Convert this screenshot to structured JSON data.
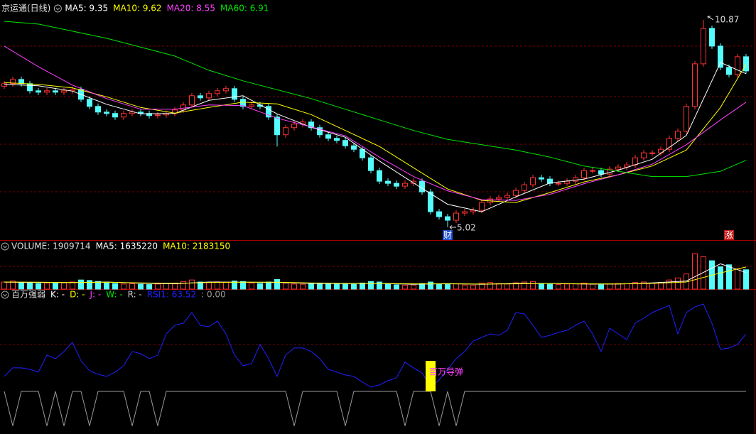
{
  "chart_data": [
    {
      "type": "candlestick",
      "title": "京运通(日线)",
      "up_color": "#ff3232",
      "down_color": "#54fcfc",
      "ylim": [
        4.66,
        11.43
      ],
      "open": [
        9.0,
        9.07,
        9.19,
        9.07,
        8.87,
        8.83,
        8.87,
        8.83,
        8.87,
        8.91,
        8.63,
        8.43,
        8.27,
        8.23,
        8.13,
        8.23,
        8.27,
        8.23,
        8.17,
        8.19,
        8.23,
        8.33,
        8.47,
        8.73,
        8.67,
        8.79,
        8.87,
        8.93,
        8.63,
        8.43,
        8.47,
        8.43,
        8.13,
        7.63,
        7.83,
        7.93,
        7.99,
        7.83,
        7.63,
        7.53,
        7.47,
        7.32,
        7.22,
        6.98,
        6.62,
        6.32,
        6.26,
        6.18,
        6.26,
        6.32,
        6.02,
        5.46,
        5.32,
        5.22,
        5.42,
        5.46,
        5.5,
        5.72,
        5.82,
        5.86,
        5.92,
        6.06,
        6.22,
        6.42,
        6.38,
        6.26,
        6.26,
        6.32,
        6.42,
        6.62,
        6.62,
        6.52,
        6.66,
        6.72,
        6.78,
        6.98,
        7.12,
        7.12,
        7.22,
        7.53,
        7.73,
        8.43,
        9.63,
        10.63,
        10.13,
        9.53,
        9.33,
        9.83
      ],
      "high": [
        9.15,
        9.27,
        9.27,
        9.15,
        8.95,
        8.95,
        8.95,
        8.95,
        8.99,
        8.99,
        8.71,
        8.51,
        8.35,
        8.31,
        8.31,
        8.35,
        8.35,
        8.31,
        8.27,
        8.31,
        8.41,
        8.55,
        8.81,
        8.81,
        8.87,
        8.95,
        9.01,
        9.01,
        8.71,
        8.55,
        8.55,
        8.51,
        8.21,
        7.91,
        8.01,
        8.07,
        8.07,
        7.91,
        7.71,
        7.61,
        7.55,
        7.4,
        7.3,
        7.06,
        6.7,
        6.4,
        6.34,
        6.34,
        6.4,
        6.4,
        6.1,
        5.54,
        5.4,
        5.5,
        5.54,
        5.58,
        5.8,
        5.9,
        5.94,
        6.0,
        6.14,
        6.3,
        6.5,
        6.5,
        6.46,
        6.34,
        6.4,
        6.5,
        6.7,
        6.7,
        6.7,
        6.74,
        6.8,
        6.86,
        7.06,
        7.2,
        7.2,
        7.3,
        7.61,
        7.81,
        8.51,
        9.71,
        10.87,
        10.71,
        10.21,
        9.61,
        9.91,
        9.91
      ],
      "low": [
        8.92,
        8.99,
        8.99,
        8.79,
        8.75,
        8.75,
        8.75,
        8.75,
        8.79,
        8.55,
        8.35,
        8.19,
        8.15,
        8.05,
        8.05,
        8.15,
        8.15,
        8.09,
        8.09,
        8.11,
        8.15,
        8.25,
        8.39,
        8.59,
        8.59,
        8.71,
        8.79,
        8.55,
        8.35,
        8.35,
        8.35,
        8.05,
        7.3,
        7.55,
        7.75,
        7.85,
        7.75,
        7.55,
        7.45,
        7.39,
        7.24,
        7.14,
        6.9,
        6.54,
        6.24,
        6.18,
        6.1,
        6.1,
        6.18,
        5.94,
        5.38,
        5.24,
        5.02,
        5.14,
        5.34,
        5.38,
        5.42,
        5.64,
        5.74,
        5.78,
        5.84,
        5.98,
        6.14,
        6.3,
        6.18,
        6.18,
        6.18,
        6.24,
        6.34,
        6.54,
        6.44,
        6.44,
        6.58,
        6.64,
        6.7,
        6.9,
        7.04,
        7.04,
        7.14,
        7.45,
        7.65,
        8.35,
        9.55,
        10.05,
        9.45,
        9.25,
        9.25,
        9.35
      ],
      "close": [
        9.07,
        9.19,
        9.07,
        8.87,
        8.83,
        8.87,
        8.83,
        8.87,
        8.91,
        8.63,
        8.43,
        8.27,
        8.23,
        8.13,
        8.23,
        8.27,
        8.23,
        8.17,
        8.19,
        8.23,
        8.33,
        8.47,
        8.73,
        8.67,
        8.79,
        8.87,
        8.93,
        8.63,
        8.43,
        8.47,
        8.43,
        8.13,
        7.63,
        7.83,
        7.93,
        7.99,
        7.83,
        7.63,
        7.53,
        7.47,
        7.32,
        7.22,
        6.98,
        6.62,
        6.32,
        6.26,
        6.18,
        6.26,
        6.32,
        6.02,
        5.46,
        5.32,
        5.22,
        5.42,
        5.46,
        5.5,
        5.72,
        5.82,
        5.86,
        5.92,
        6.06,
        6.22,
        6.42,
        6.38,
        6.26,
        6.26,
        6.32,
        6.42,
        6.62,
        6.62,
        6.52,
        6.66,
        6.72,
        6.78,
        6.98,
        7.12,
        7.12,
        7.22,
        7.53,
        7.73,
        8.43,
        9.63,
        10.63,
        10.13,
        9.53,
        9.33,
        9.83,
        9.43
      ],
      "ma_x": [
        0,
        4,
        8,
        12,
        16,
        20,
        24,
        28,
        32,
        36,
        40,
        44,
        48,
        52,
        56,
        60,
        64,
        68,
        72,
        76,
        80,
        84,
        87
      ],
      "series": [
        {
          "name": "MA5: 9.35",
          "color": "#ffffff",
          "values": [
            9.05,
            9.01,
            8.86,
            8.49,
            8.22,
            8.23,
            8.6,
            8.73,
            8.22,
            7.84,
            7.56,
            6.89,
            6.27,
            5.67,
            5.46,
            5.88,
            6.27,
            6.38,
            6.63,
            6.94,
            7.61,
            9.67,
            9.35
          ]
        },
        {
          "name": "MA10: 9.62",
          "color": "#ffff00",
          "values": [
            9.1,
            9.05,
            8.95,
            8.7,
            8.4,
            8.24,
            8.4,
            8.55,
            8.5,
            8.2,
            7.75,
            7.3,
            6.7,
            6.1,
            5.78,
            5.72,
            6.0,
            6.3,
            6.5,
            6.75,
            7.2,
            8.4,
            9.62
          ]
        },
        {
          "name": "MA20: 8.55",
          "color": "#ff40ff",
          "values": [
            10.13,
            9.55,
            9.03,
            8.65,
            8.35,
            8.35,
            8.47,
            8.45,
            8.1,
            7.85,
            7.6,
            7.0,
            6.45,
            6.05,
            5.8,
            5.78,
            5.95,
            6.25,
            6.5,
            6.8,
            7.35,
            8.05,
            8.55
          ]
        },
        {
          "name": "MA60: 6.91",
          "color": "#00e600",
          "values": [
            10.83,
            10.75,
            10.55,
            10.35,
            10.1,
            9.85,
            9.45,
            9.15,
            8.9,
            8.65,
            8.35,
            8.05,
            7.75,
            7.5,
            7.35,
            7.2,
            7.0,
            6.75,
            6.6,
            6.45,
            6.45,
            6.6,
            6.91
          ]
        }
      ],
      "annotations": [
        {
          "index": 82,
          "value": 10.87
        },
        {
          "index": 52,
          "value": 5.02
        }
      ],
      "markers": [
        {
          "index": 52,
          "text": "财",
          "color": "#2050d0"
        },
        {
          "index": 85,
          "text": "涨",
          "color": "#c01818"
        }
      ]
    },
    {
      "type": "bar",
      "title": "VOLUME: 1909714",
      "ylim": [
        0,
        4700000
      ],
      "values": [
        700000,
        800000,
        650000,
        600000,
        550000,
        600000,
        580000,
        620000,
        700000,
        900000,
        850000,
        750000,
        600000,
        550000,
        500000,
        520000,
        480000,
        450000,
        500000,
        560000,
        600000,
        750000,
        900000,
        700000,
        650000,
        720000,
        680000,
        800000,
        750000,
        600000,
        550000,
        700000,
        950000,
        600000,
        500000,
        480000,
        520000,
        600000,
        550000,
        500000,
        520000,
        480000,
        600000,
        750000,
        700000,
        500000,
        420000,
        380000,
        400000,
        550000,
        700000,
        500000,
        450000,
        520000,
        400000,
        380000,
        600000,
        650000,
        550000,
        500000,
        620000,
        700000,
        750000,
        550000,
        480000,
        450000,
        500000,
        520000,
        600000,
        480000,
        420000,
        500000,
        550000,
        520000,
        650000,
        700000,
        600000,
        650000,
        900000,
        1100000,
        1500000,
        3500000,
        3200000,
        2800000,
        2200000,
        2400000,
        2000000,
        1909714
      ],
      "series": [
        {
          "name": "MA5: 1635220",
          "color": "#ffffff",
          "values": [
            680000,
            660000,
            640000,
            700000,
            580000,
            520000,
            700000,
            680000,
            660000,
            560000,
            540000,
            560000,
            480000,
            540000,
            480000,
            560000,
            560000,
            500000,
            500000,
            620000,
            800000,
            2500000,
            1635220
          ]
        },
        {
          "name": "MA10: 2183150",
          "color": "#ffff00",
          "values": [
            700000,
            680000,
            650000,
            680000,
            620000,
            560000,
            650000,
            690000,
            680000,
            600000,
            560000,
            560000,
            520000,
            520000,
            500000,
            520000,
            560000,
            520000,
            510000,
            560000,
            700000,
            1600000,
            2183150
          ]
        }
      ]
    },
    {
      "type": "line",
      "title": "百万强弱",
      "ylim": [
        -35,
        100
      ],
      "legend": [
        {
          "name": "K: -",
          "color": "#ffffff"
        },
        {
          "name": "D: -",
          "color": "#ffff00"
        },
        {
          "name": "J: -",
          "color": "#ff40ff"
        },
        {
          "name": "W: -",
          "color": "#00e600"
        },
        {
          "name": "R: -",
          "color": "#cccccc"
        }
      ],
      "series": [
        {
          "name": "RSI1: 63.52",
          "color": "#2020ff",
          "values": [
            21.7,
            30.1,
            30.1,
            28.7,
            25.9,
            42.7,
            39.2,
            46.2,
            55.2,
            37.1,
            27.3,
            23.8,
            21.7,
            25.9,
            32.2,
            46.2,
            44.1,
            39.2,
            42.7,
            63.6,
            72.0,
            74.1,
            84.6,
            72.0,
            70.6,
            76.2,
            63.6,
            42.7,
            32.2,
            34.3,
            53.1,
            39.2,
            21.7,
            42.7,
            49.7,
            49.7,
            46.2,
            39.2,
            28.7,
            25.9,
            23.1,
            21.7,
            16.1,
            11.2,
            13.3,
            17.5,
            20.3,
            35.7,
            30.1,
            25.2,
            11.2,
            18.2,
            28.7,
            39.2,
            46.2,
            56.6,
            60.1,
            63.6,
            62.2,
            67.1,
            84.6,
            83.2,
            72.0,
            60.1,
            62.2,
            65.0,
            67.1,
            72.0,
            76.2,
            63.6,
            46.2,
            69.2,
            63.6,
            58.0,
            74.1,
            79.0,
            84.6,
            88.1,
            91.6,
            63.6,
            84.6,
            90.2,
            93.0,
            74.1,
            48.3,
            49.7,
            53.1,
            63.52
          ]
        },
        {
          "name": ": 0.00",
          "color": "#9a9a9a",
          "values": [
            7,
            -27,
            7,
            7,
            7,
            -27,
            7,
            -27,
            7,
            7,
            -27,
            7,
            7,
            7,
            7,
            -27,
            7,
            7,
            -27,
            7,
            7,
            7,
            7,
            7,
            7,
            7,
            7,
            7,
            7,
            7,
            7,
            7,
            7,
            7,
            -27,
            7,
            7,
            7,
            7,
            7,
            -27,
            7,
            7,
            7,
            7,
            7,
            7,
            -27,
            7,
            7,
            7,
            -27,
            7,
            -27,
            7,
            7,
            7,
            7,
            7,
            7,
            7,
            7,
            7,
            7,
            7,
            7,
            7,
            7,
            7,
            7,
            7,
            7,
            7,
            7,
            7,
            7,
            7,
            7,
            7,
            7,
            7,
            7,
            7,
            7,
            7,
            7,
            7,
            7
          ]
        }
      ],
      "signal": {
        "index": 50,
        "from": 7,
        "to": 37,
        "label": "百万导弹",
        "color": "#ffff00",
        "label_color": "#ff40ff"
      }
    }
  ]
}
